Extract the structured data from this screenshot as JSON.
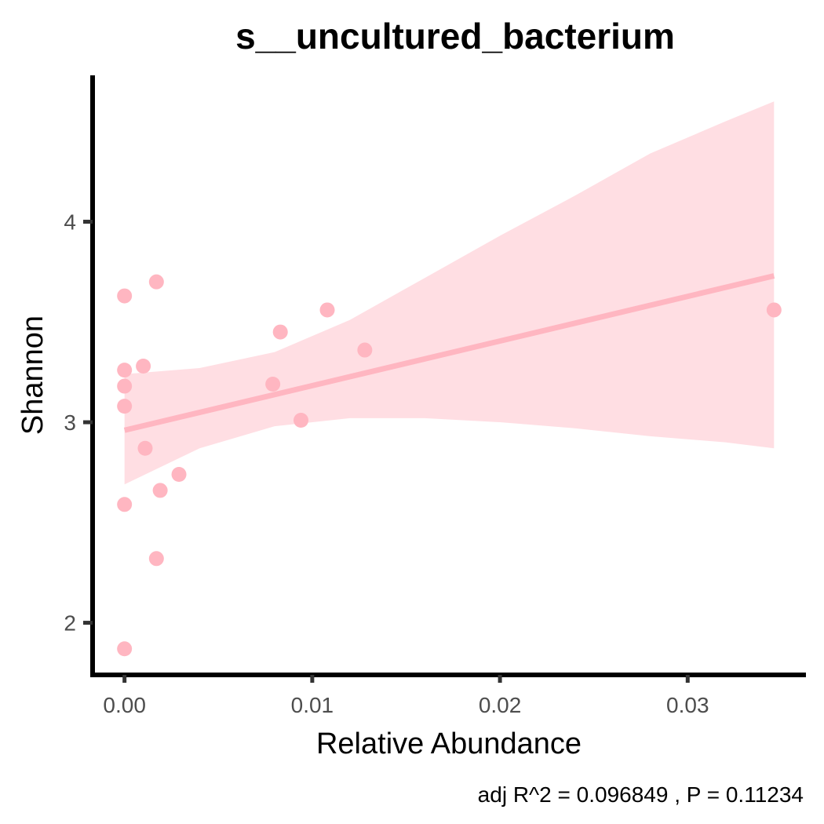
{
  "chart_data": {
    "type": "scatter",
    "title": "s__uncultured_bacterium",
    "xlabel": "Relative Abundance",
    "ylabel": "Shannon",
    "caption": "adj R^2 =  0.096849 , P = 0.11234",
    "xlim": [
      -0.0017,
      0.0363
    ],
    "ylim": [
      1.74,
      4.73
    ],
    "x_ticks": [
      0.0,
      0.01,
      0.02,
      0.03
    ],
    "x_tick_labels": [
      "0.00",
      "0.01",
      "0.02",
      "0.03"
    ],
    "y_ticks": [
      2,
      3,
      4
    ],
    "y_tick_labels": [
      "2",
      "3",
      "4"
    ],
    "grid": false,
    "legend": "none",
    "colors": {
      "point": "#ffb6c1",
      "line": "#ffb6c1",
      "band": "#ffb6c1",
      "axis": "#000000",
      "tick_text": "#4d4d4d"
    },
    "points": [
      {
        "x": 0.0,
        "y": 1.87
      },
      {
        "x": 0.0,
        "y": 2.59
      },
      {
        "x": 0.0,
        "y": 3.08
      },
      {
        "x": 0.0,
        "y": 3.18
      },
      {
        "x": 0.0,
        "y": 3.26
      },
      {
        "x": 0.0,
        "y": 3.63
      },
      {
        "x": 0.001,
        "y": 3.28
      },
      {
        "x": 0.0011,
        "y": 2.87
      },
      {
        "x": 0.0017,
        "y": 2.32
      },
      {
        "x": 0.0017,
        "y": 3.7
      },
      {
        "x": 0.0019,
        "y": 2.66
      },
      {
        "x": 0.0029,
        "y": 2.74
      },
      {
        "x": 0.0079,
        "y": 3.19
      },
      {
        "x": 0.0083,
        "y": 3.45
      },
      {
        "x": 0.0094,
        "y": 3.01
      },
      {
        "x": 0.0108,
        "y": 3.56
      },
      {
        "x": 0.0128,
        "y": 3.36
      },
      {
        "x": 0.0346,
        "y": 3.56
      }
    ],
    "fit_line": [
      {
        "x": 0.0,
        "y": 2.96
      },
      {
        "x": 0.0346,
        "y": 3.73
      }
    ],
    "confidence_band": [
      {
        "x": 0.0,
        "lower": 2.69,
        "upper": 3.24
      },
      {
        "x": 0.004,
        "lower": 2.87,
        "upper": 3.27
      },
      {
        "x": 0.008,
        "lower": 2.98,
        "upper": 3.35
      },
      {
        "x": 0.012,
        "lower": 3.02,
        "upper": 3.51
      },
      {
        "x": 0.016,
        "lower": 3.02,
        "upper": 3.72
      },
      {
        "x": 0.02,
        "lower": 3.0,
        "upper": 3.93
      },
      {
        "x": 0.024,
        "lower": 2.97,
        "upper": 4.13
      },
      {
        "x": 0.028,
        "lower": 2.93,
        "upper": 4.34
      },
      {
        "x": 0.032,
        "lower": 2.9,
        "upper": 4.5
      },
      {
        "x": 0.0346,
        "lower": 2.87,
        "upper": 4.6
      }
    ]
  }
}
